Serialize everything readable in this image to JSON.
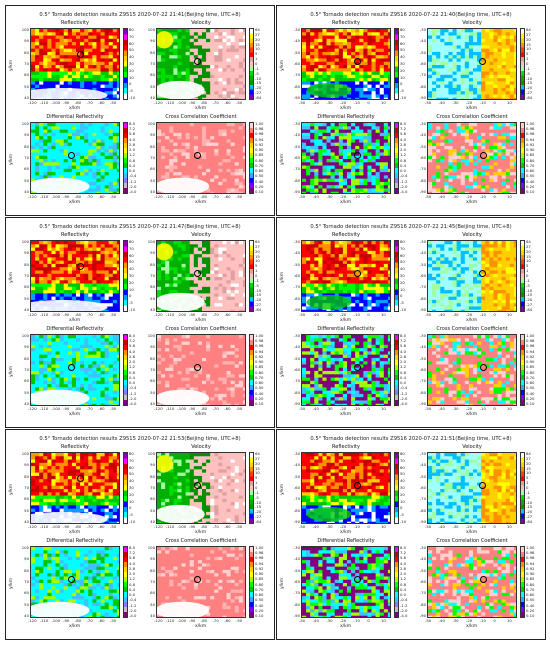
{
  "rows": [
    {
      "left": {
        "title": "0.5° Tornado detection results Z9515 2020-07-22 21:41(Beijing time, UTC+8)",
        "radar": "Z9515",
        "x_ticks": [
          "-120",
          "-110",
          "-100",
          "-90",
          "-80",
          "-70",
          "-60",
          "-50"
        ],
        "y_ticks": [
          "100",
          "90",
          "80",
          "70",
          "60",
          "50",
          "40"
        ],
        "circle_value": "40.00"
      },
      "right": {
        "title": "0.5° Tornado detection results Z9516 2020-07-22 21:40(Beijing time, UTC+8)",
        "radar": "Z9516",
        "x_ticks": [
          "-50",
          "-40",
          "-30",
          "-20",
          "-10",
          "0",
          "10"
        ],
        "y_ticks": [
          "-30",
          "-40",
          "-50",
          "-60",
          "-70",
          "-80",
          "-90"
        ],
        "circle_value": "40.00"
      }
    },
    {
      "left": {
        "title": "0.5° Tornado detection results Z9515 2020-07-22 21:47(Beijing time, UTC+8)",
        "radar": "Z9515",
        "x_ticks": [
          "-120",
          "-110",
          "-100",
          "-90",
          "-80",
          "-70",
          "-60",
          "-50"
        ],
        "y_ticks": [
          "100",
          "90",
          "80",
          "70",
          "60",
          "50",
          "40"
        ],
        "circle_value": "40.75"
      },
      "right": {
        "title": "0.5° Tornado detection results Z9516 2020-07-22 21:45(Beijing time, UTC+8)",
        "radar": "Z9516",
        "x_ticks": [
          "-50",
          "-40",
          "-30",
          "-20",
          "-10",
          "0",
          "10"
        ],
        "y_ticks": [
          "-30",
          "-40",
          "-50",
          "-60",
          "-70",
          "-80",
          "-90"
        ],
        "circle_value": "40.75"
      }
    },
    {
      "left": {
        "title": "0.5° Tornado detection results Z9515 2020-07-22 21:53(Beijing time, UTC+8)",
        "radar": "Z9515",
        "x_ticks": [
          "-120",
          "-110",
          "-100",
          "-90",
          "-80",
          "-70",
          "-60",
          "-50"
        ],
        "y_ticks": [
          "100",
          "90",
          "80",
          "70",
          "60",
          "50",
          "40"
        ],
        "circle_value": "40.75"
      },
      "right": {
        "title": "0.5° Tornado detection results Z9516 2020-07-22 21:51(Beijing time, UTC+8)",
        "radar": "Z9516",
        "x_ticks": [
          "-50",
          "-40",
          "-30",
          "-20",
          "-10",
          "0",
          "10"
        ],
        "y_ticks": [
          "-30",
          "-40",
          "-50",
          "-60",
          "-70",
          "-80",
          "-90"
        ],
        "circle_value": "40.75"
      }
    }
  ],
  "panel_titles": [
    "Reflectivity",
    "Velocity",
    "Differential Reflectivity",
    "Cross Correlation Coefficient"
  ],
  "x_label": "x/km",
  "y_label": "y/km",
  "colorbars": {
    "reflectivity": {
      "ticks": [
        "80",
        "70",
        "60",
        "50",
        "40",
        "30",
        "20",
        "10",
        "0",
        "-5",
        "-10"
      ],
      "colors": [
        "#8b00b0",
        "#ff00ff",
        "#c80000",
        "#ff0000",
        "#ff9000",
        "#ffd000",
        "#ffff00",
        "#00c800",
        "#00ff00",
        "#0000ff",
        "#00a0ff",
        "#00ffff",
        "#ffffff"
      ]
    },
    "velocity": {
      "ticks": [
        "64",
        "27",
        "20",
        "15",
        "10",
        "5",
        "1",
        "0",
        "-1",
        "-5",
        "-10",
        "-15",
        "-20",
        "-27",
        "-64"
      ],
      "colors": [
        "#ffffff",
        "#ffff00",
        "#ffd000",
        "#ff9000",
        "#ff4000",
        "#ff0000",
        "#e0a0a0",
        "#ffc0c0",
        "#a0ffa0",
        "#00e000",
        "#00b000",
        "#009000",
        "#00c0ff",
        "#0000ff",
        "#8000a0"
      ]
    },
    "zdr": {
      "ticks": [
        "8.0",
        "7.2",
        "5.6",
        "4.0",
        "2.8",
        "2.0",
        "1.2",
        "0.8",
        "0.4",
        "0.0",
        "-0.4",
        "-1.2",
        "-2.0",
        "-4.0"
      ],
      "colors": [
        "#ff00ff",
        "#c80000",
        "#ff0000",
        "#ff9000",
        "#ffd000",
        "#ffff00",
        "#a0ff00",
        "#00ff00",
        "#00c800",
        "#00ffff",
        "#40c0ff",
        "#8080ff",
        "#c0c0c0",
        "#800080"
      ]
    },
    "cc": {
      "ticks": [
        "1.00",
        "0.98",
        "0.96",
        "0.94",
        "0.92",
        "0.90",
        "0.85",
        "0.80",
        "0.70",
        "0.60",
        "0.50",
        "0.40",
        "0.20",
        "0.10"
      ],
      "colors": [
        "#ffd0d0",
        "#ff8080",
        "#ff0000",
        "#ff9000",
        "#ffd000",
        "#ffff00",
        "#a0ff00",
        "#00ff00",
        "#00c800",
        "#00ffff",
        "#40a0ff",
        "#0000ff",
        "#8000ff",
        "#800080"
      ]
    }
  },
  "accent_colors": {
    "border": "#222222",
    "background": "#ffffff"
  }
}
